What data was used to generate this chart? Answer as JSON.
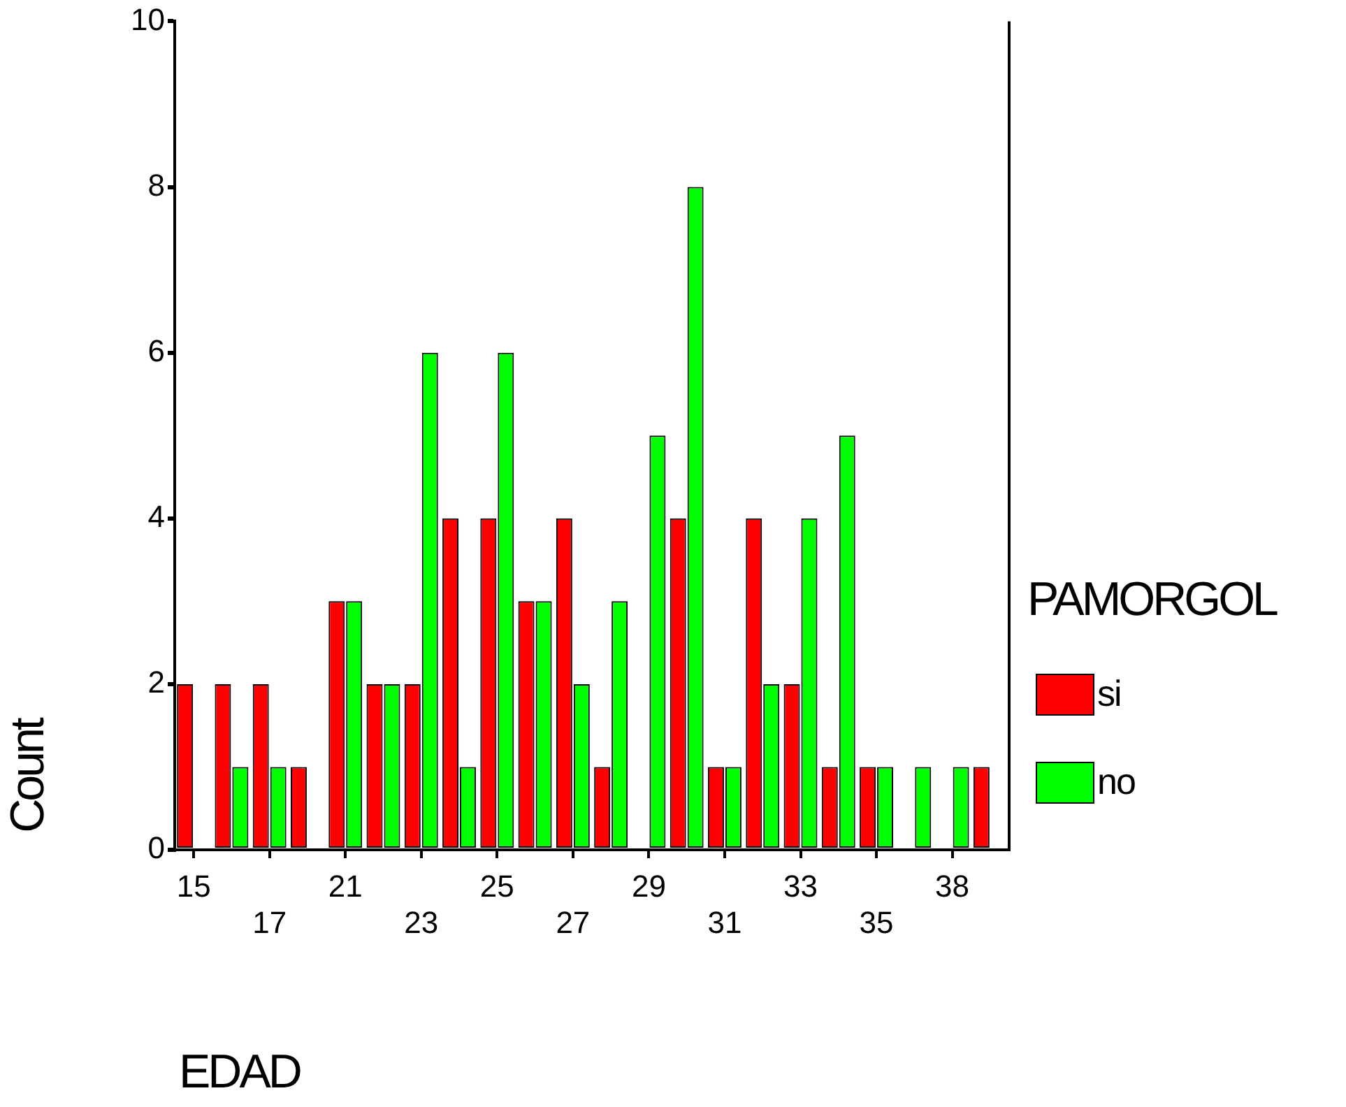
{
  "chart_data": {
    "type": "bar",
    "xlabel": "EDAD",
    "ylabel": "Count",
    "legend_title": "PAMORGOL",
    "legend": "right",
    "grid": false,
    "categories": [
      "15",
      null,
      "17",
      null,
      "21",
      null,
      "23",
      null,
      "25",
      null,
      "27",
      null,
      "29",
      null,
      "31",
      null,
      "33",
      null,
      "35",
      null,
      "38",
      null
    ],
    "ylim": [
      0,
      10
    ],
    "yticks": [
      0,
      2,
      4,
      6,
      8,
      10
    ],
    "series": [
      {
        "name": "si",
        "color": "#ff0000",
        "values": [
          2,
          2,
          2,
          1,
          3,
          2,
          2,
          4,
          4,
          3,
          4,
          1,
          0,
          4,
          1,
          4,
          2,
          1,
          1,
          0,
          0,
          1
        ]
      },
      {
        "name": "no",
        "color": "#00ff00",
        "values": [
          0,
          1,
          1,
          0,
          3,
          2,
          6,
          1,
          6,
          3,
          2,
          3,
          5,
          8,
          1,
          2,
          4,
          5,
          1,
          1,
          1,
          0
        ]
      }
    ]
  }
}
